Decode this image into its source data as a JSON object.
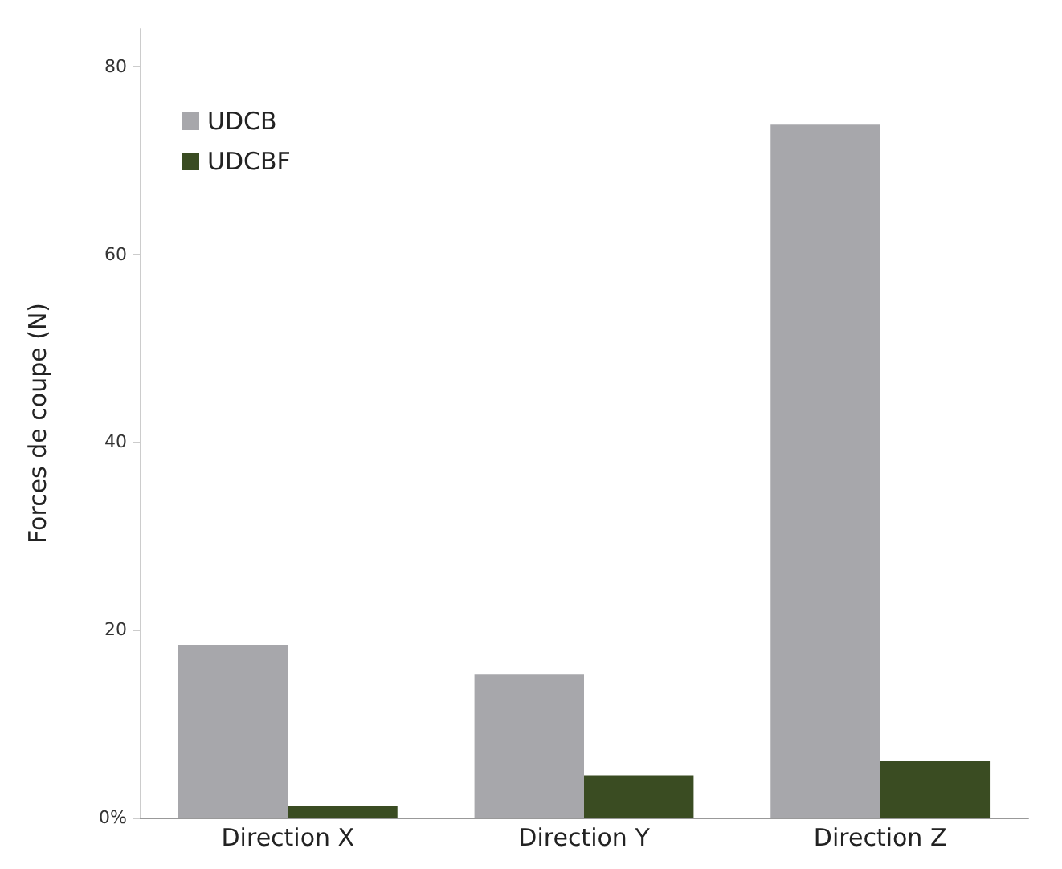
{
  "chart_data": {
    "type": "bar",
    "ylabel": "Forces de coupe (N)",
    "categories": [
      "Direction X",
      "Direction Y",
      "Direction Z"
    ],
    "series": [
      {
        "name": "UDCB",
        "color": "#a7a7ab",
        "values": [
          18.4,
          15.3,
          73.8
        ]
      },
      {
        "name": "UDCBF",
        "color": "#3a4c22",
        "values": [
          1.2,
          4.5,
          6.0
        ]
      }
    ],
    "ylim": [
      0,
      84
    ],
    "yticks": [
      {
        "value": 0,
        "label": "0%"
      },
      20,
      40,
      60,
      80
    ],
    "grid": false,
    "legend": "top left"
  }
}
